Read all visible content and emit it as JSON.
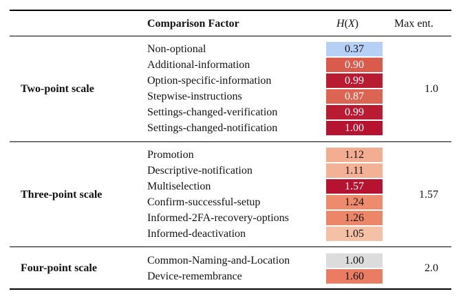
{
  "header": {
    "factor": "Comparison Factor",
    "hx_H": "H",
    "hx_open": "(",
    "hx_X": "X",
    "hx_close": ")",
    "max": "Max ent."
  },
  "groups": [
    {
      "name": "Two-point scale",
      "max": "1.0",
      "rows": [
        {
          "factor": "Non-optional",
          "value": "0.37",
          "color": "#b6cff5"
        },
        {
          "factor": "Additional-information",
          "value": "0.90",
          "color": "#d95b4c"
        },
        {
          "factor": "Option-specific-information",
          "value": "0.99",
          "color": "#b81b32"
        },
        {
          "factor": "Stepwise-instructions",
          "value": "0.87",
          "color": "#dc6452"
        },
        {
          "factor": "Settings-changed-verification",
          "value": "0.99",
          "color": "#b81b32"
        },
        {
          "factor": "Settings-changed-notification",
          "value": "1.00",
          "color": "#b5132f"
        }
      ]
    },
    {
      "name": "Three-point scale",
      "max": "1.57",
      "rows": [
        {
          "factor": "Promotion",
          "value": "1.12",
          "color": "#f3ad90"
        },
        {
          "factor": "Descriptive-notification",
          "value": "1.11",
          "color": "#f3b195"
        },
        {
          "factor": "Multiselection",
          "value": "1.57",
          "color": "#b5132f"
        },
        {
          "factor": "Confirm-successful-setup",
          "value": "1.24",
          "color": "#ee8b6c"
        },
        {
          "factor": "Informed-2FA-recovery-options",
          "value": "1.26",
          "color": "#ec8668"
        },
        {
          "factor": "Informed-deactivation",
          "value": "1.05",
          "color": "#f4c0a6"
        }
      ]
    },
    {
      "name": "Four-point scale",
      "max": "2.0",
      "rows": [
        {
          "factor": "Common-Naming-and-Location",
          "value": "1.00",
          "color": "#dcdcdc"
        },
        {
          "factor": "Device-remembrance",
          "value": "1.60",
          "color": "#e97c61"
        }
      ]
    }
  ]
}
